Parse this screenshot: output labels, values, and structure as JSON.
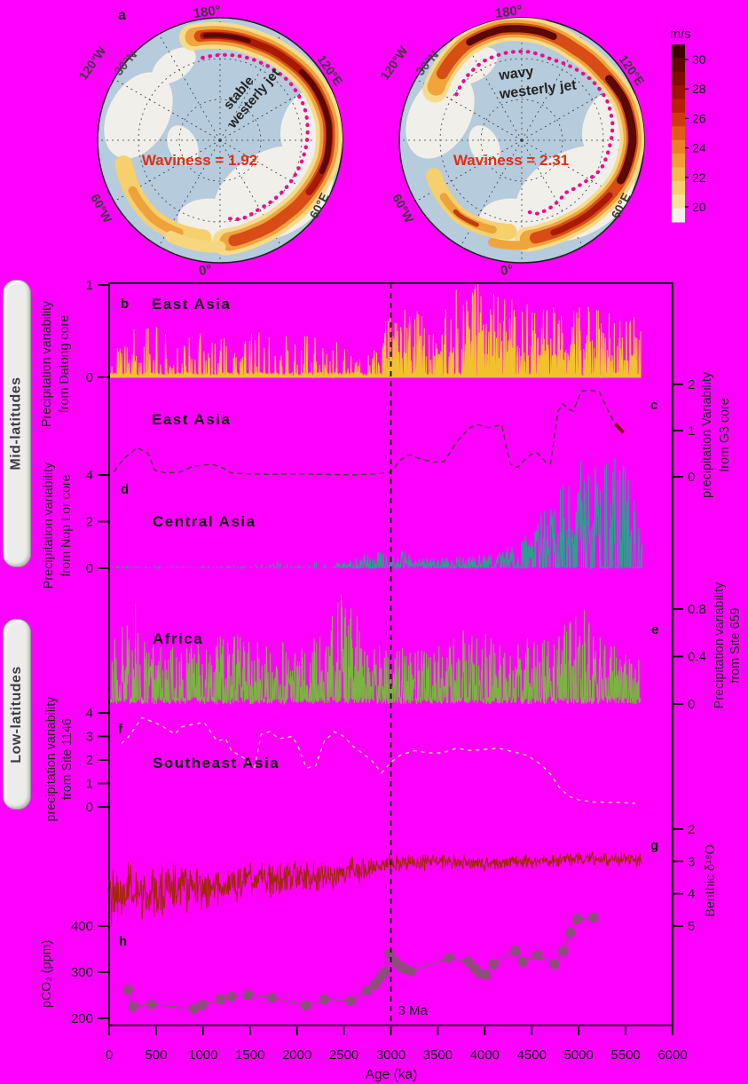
{
  "figure": {
    "background": "#ff00ff",
    "frame_color": "#000000"
  },
  "side_labels": {
    "mid": "Mid-latitudes",
    "low": "Low-latitudes"
  },
  "maps": {
    "panel_letter": "a",
    "contour_color": "#ea0e8c",
    "waviness_color": "#dd2f16",
    "left": {
      "grid_labels": {
        "top": "180°",
        "upper_left": "120°W",
        "lat": "30°N",
        "upper_right": "120°E",
        "lower_right": "60°E",
        "lower_left": "60°W",
        "bottom": "0°"
      },
      "jet_label": [
        "stable",
        "westerly jet"
      ],
      "waviness": "Waviness = 1.92"
    },
    "right": {
      "grid_labels": {
        "top": "180°",
        "upper_left": "120°W",
        "lat": "30°N",
        "upper_right": "120°E",
        "lower_right": "60°E",
        "lower_left": "60°W",
        "bottom": "0°"
      },
      "jet_label": [
        "wavy",
        "westerly jet"
      ],
      "waviness": "Waviness = 2.31"
    },
    "colorbar": {
      "title": "m/s",
      "tick_labels": [
        "30",
        "28",
        "26",
        "24",
        "22",
        "20"
      ],
      "colors": [
        "#3f0402",
        "#5f0903",
        "#7f0d03",
        "#9c1204",
        "#b81f07",
        "#cf3b10",
        "#e05c19",
        "#ec7f28",
        "#f29d3a",
        "#f5b851",
        "#f6cd72",
        "#f8df9b",
        "#f2efe9"
      ]
    }
  },
  "chart_data": {
    "type": "multi-panel time series (line / area / scatter)",
    "x_axis": {
      "label": "Age (ka)",
      "min": 0,
      "max": 6000,
      "tick_step": 500,
      "tick_labels": [
        "0",
        "500",
        "1000",
        "1500",
        "2000",
        "2500",
        "3000",
        "3500",
        "4000",
        "4500",
        "5000",
        "5500",
        "6000"
      ]
    },
    "annotation": {
      "label": "3 Ma",
      "age_ka": 3000
    },
    "panels": [
      {
        "id": "b",
        "letter": "b",
        "region": "East Asia",
        "axis_side": "left",
        "axis_label_lines": [
          "Precipitation variability",
          "from Datong core"
        ],
        "tick_labels": [
          "1",
          "0"
        ],
        "tick_values": [
          1,
          0
        ],
        "value_range": [
          0,
          1.05
        ],
        "color": "#f2c12e",
        "style": "spiky-fill",
        "gen": {
          "seed": 11,
          "step": 4,
          "end": 5660,
          "base": 0.05,
          "split": 2900,
          "prob_young": 0.17,
          "prob_old": 0.4,
          "envelope": [
            [
              0,
              0.32
            ],
            [
              200,
              0.5
            ],
            [
              450,
              0.58
            ],
            [
              700,
              0.48
            ],
            [
              1000,
              0.52
            ],
            [
              1400,
              0.35
            ],
            [
              1600,
              0.5
            ],
            [
              1800,
              0.42
            ],
            [
              2200,
              0.45
            ],
            [
              2600,
              0.3
            ],
            [
              2800,
              0.35
            ],
            [
              3000,
              0.72
            ],
            [
              3300,
              0.8
            ],
            [
              3600,
              0.88
            ],
            [
              3950,
              1.04
            ],
            [
              4200,
              0.86
            ],
            [
              4500,
              0.8
            ],
            [
              4800,
              0.72
            ],
            [
              5100,
              0.76
            ],
            [
              5400,
              0.7
            ],
            [
              5660,
              0.6
            ]
          ]
        }
      },
      {
        "id": "c",
        "letter": "c",
        "region": "East Asia",
        "axis_side": "right",
        "axis_label_lines": [
          "precipitation Variability",
          "from G3 core"
        ],
        "tick_labels": [
          "2",
          "1",
          "0"
        ],
        "tick_values": [
          2,
          1,
          0
        ],
        "color": "#45433a",
        "style": "dashed-line",
        "dash": "6 4",
        "points": [
          [
            50,
            0.1
          ],
          [
            150,
            0.38
          ],
          [
            300,
            0.63
          ],
          [
            420,
            0.5
          ],
          [
            480,
            0.15
          ],
          [
            600,
            0.08
          ],
          [
            750,
            0.1
          ],
          [
            900,
            0.23
          ],
          [
            1100,
            0.27
          ],
          [
            1200,
            0.2
          ],
          [
            1300,
            0.08
          ],
          [
            1500,
            0.06
          ],
          [
            1700,
            0.05
          ],
          [
            2000,
            0.06
          ],
          [
            2300,
            0.05
          ],
          [
            2600,
            0.04
          ],
          [
            2850,
            0.06
          ],
          [
            3000,
            0.1
          ],
          [
            3100,
            0.36
          ],
          [
            3200,
            0.48
          ],
          [
            3320,
            0.38
          ],
          [
            3450,
            0.32
          ],
          [
            3570,
            0.33
          ],
          [
            3700,
            0.75
          ],
          [
            3840,
            1.06
          ],
          [
            3930,
            1.13
          ],
          [
            4030,
            1.06
          ],
          [
            4120,
            1.1
          ],
          [
            4180,
            1.12
          ],
          [
            4270,
            0.28
          ],
          [
            4350,
            0.2
          ],
          [
            4470,
            0.46
          ],
          [
            4560,
            0.52
          ],
          [
            4650,
            0.32
          ],
          [
            4700,
            0.28
          ],
          [
            4780,
            1.42
          ],
          [
            4830,
            1.58
          ],
          [
            4890,
            1.47
          ],
          [
            4940,
            1.42
          ],
          [
            5030,
            1.86
          ],
          [
            5130,
            1.87
          ],
          [
            5220,
            1.84
          ],
          [
            5310,
            1.44
          ],
          [
            5380,
            1.18
          ],
          [
            5400,
            1.12
          ]
        ],
        "end_segment": {
          "color": "#7c150b",
          "points": [
            [
              5400,
              1.12
            ],
            [
              5465,
              0.98
            ]
          ]
        }
      },
      {
        "id": "d",
        "letter": "d",
        "region": "Central Asia",
        "axis_side": "left",
        "axis_label_lines": [
          "Precipitation variability",
          "from Nop Lor core"
        ],
        "tick_labels": [
          "4",
          "2",
          "0"
        ],
        "tick_values": [
          4,
          2,
          0
        ],
        "color": "#2aa18c",
        "style": "spiky-line",
        "gen": {
          "seed": 23,
          "step": 5,
          "end": 5680,
          "base": 0.05,
          "split": 2900,
          "prob_young": 0.3,
          "prob_old": 0.5,
          "gap_until": 2400,
          "gap_prob": 0.35,
          "envelope": [
            [
              0,
              0.06
            ],
            [
              1500,
              0.07
            ],
            [
              1700,
              0.3
            ],
            [
              2100,
              0.22
            ],
            [
              2500,
              0.28
            ],
            [
              2870,
              0.8
            ],
            [
              2980,
              0.5
            ],
            [
              3100,
              0.9
            ],
            [
              3250,
              0.4
            ],
            [
              3500,
              0.45
            ],
            [
              3800,
              0.5
            ],
            [
              4100,
              0.6
            ],
            [
              4300,
              1.1
            ],
            [
              4500,
              2.0
            ],
            [
              4650,
              2.6
            ],
            [
              4800,
              3.6
            ],
            [
              4950,
              4.8
            ],
            [
              5150,
              4.2
            ],
            [
              5300,
              5.0
            ],
            [
              5450,
              4.5
            ],
            [
              5680,
              3.8
            ]
          ]
        }
      },
      {
        "id": "e",
        "letter": "e",
        "region": "Africa",
        "axis_side": "right",
        "axis_label_lines": [
          "Precipitation variability",
          "from Site 659"
        ],
        "tick_labels": [
          "0.8",
          "0.4",
          "0"
        ],
        "tick_values": [
          0.8,
          0.4,
          0
        ],
        "color": "#7cb342",
        "style": "spiky-line",
        "gen": {
          "seed": 37,
          "step": 4,
          "end": 5660,
          "base": 0.06,
          "split": 6000,
          "prob_young": 0.45,
          "prob_old": 0.45,
          "envelope": [
            [
              0,
              0.5
            ],
            [
              250,
              0.85
            ],
            [
              500,
              0.45
            ],
            [
              900,
              0.5
            ],
            [
              1300,
              0.55
            ],
            [
              1700,
              0.5
            ],
            [
              2100,
              0.45
            ],
            [
              2550,
              1.02
            ],
            [
              2700,
              0.5
            ],
            [
              3100,
              0.45
            ],
            [
              3500,
              0.5
            ],
            [
              3900,
              0.62
            ],
            [
              4300,
              0.5
            ],
            [
              4700,
              0.55
            ],
            [
              5050,
              0.8
            ],
            [
              5400,
              0.45
            ],
            [
              5660,
              0.4
            ]
          ]
        }
      },
      {
        "id": "f",
        "letter": "f",
        "region": "Southeast Asia",
        "axis_side": "left",
        "axis_label_lines": [
          "precipitation variability",
          "from Site 1146"
        ],
        "tick_labels": [
          "4",
          "3",
          "2",
          "1",
          "0"
        ],
        "tick_values": [
          4,
          3,
          2,
          1,
          0
        ],
        "color": "#ddd79b",
        "style": "dashed-line",
        "dash": "4 5",
        "points": [
          [
            130,
            2.7
          ],
          [
            210,
            3.0
          ],
          [
            350,
            3.8
          ],
          [
            540,
            3.5
          ],
          [
            700,
            3.1
          ],
          [
            770,
            3.4
          ],
          [
            870,
            3.5
          ],
          [
            1010,
            3.6
          ],
          [
            1080,
            3.2
          ],
          [
            1150,
            2.8
          ],
          [
            1240,
            2.9
          ],
          [
            1300,
            2.4
          ],
          [
            1430,
            2.1
          ],
          [
            1550,
            1.7
          ],
          [
            1620,
            3.1
          ],
          [
            1710,
            3.2
          ],
          [
            1810,
            2.9
          ],
          [
            1950,
            3.0
          ],
          [
            2010,
            2.6
          ],
          [
            2100,
            1.65
          ],
          [
            2200,
            1.75
          ],
          [
            2290,
            2.8
          ],
          [
            2400,
            3.2
          ],
          [
            2500,
            3.0
          ],
          [
            2590,
            2.6
          ],
          [
            2690,
            2.3
          ],
          [
            2790,
            2.0
          ],
          [
            2900,
            1.45
          ],
          [
            3000,
            1.9
          ],
          [
            3100,
            2.2
          ],
          [
            3250,
            2.4
          ],
          [
            3400,
            2.3
          ],
          [
            3550,
            2.3
          ],
          [
            3700,
            2.5
          ],
          [
            3850,
            2.4
          ],
          [
            4000,
            2.45
          ],
          [
            4150,
            2.5
          ],
          [
            4300,
            2.35
          ],
          [
            4450,
            2.2
          ],
          [
            4600,
            1.8
          ],
          [
            4700,
            1.4
          ],
          [
            4800,
            0.8
          ],
          [
            4900,
            0.45
          ],
          [
            5000,
            0.3
          ],
          [
            5150,
            0.22
          ],
          [
            5300,
            0.2
          ],
          [
            5450,
            0.2
          ],
          [
            5600,
            0.15
          ]
        ]
      },
      {
        "id": "g",
        "letter": "g",
        "region": null,
        "axis_side": "right",
        "axis_label_lines": [
          "Benthic δ¹⁸O"
        ],
        "tick_labels": [
          "2",
          "3",
          "4",
          "5"
        ],
        "tick_values": [
          2,
          3,
          4,
          5
        ],
        "inverted_axis": true,
        "color": "#a02800",
        "style": "noise-line",
        "gen": {
          "seed": 51,
          "step": 6,
          "end": 5680,
          "mean": [
            [
              0,
              4.1
            ],
            [
              300,
              4.0
            ],
            [
              600,
              3.95
            ],
            [
              1000,
              3.8
            ],
            [
              1500,
              3.6
            ],
            [
              2000,
              3.5
            ],
            [
              2500,
              3.35
            ],
            [
              2800,
              3.2
            ],
            [
              3000,
              3.05
            ],
            [
              3500,
              3.0
            ],
            [
              4000,
              3.05
            ],
            [
              4500,
              3.0
            ],
            [
              4800,
              2.95
            ],
            [
              5200,
              2.9
            ],
            [
              5680,
              2.95
            ]
          ],
          "amp": [
            [
              0,
              0.8
            ],
            [
              500,
              0.75
            ],
            [
              1000,
              0.6
            ],
            [
              1500,
              0.5
            ],
            [
              2000,
              0.42
            ],
            [
              2500,
              0.38
            ],
            [
              2800,
              0.3
            ],
            [
              3000,
              0.24
            ],
            [
              4000,
              0.2
            ],
            [
              5680,
              0.18
            ]
          ]
        }
      },
      {
        "id": "h",
        "letter": "h",
        "region": null,
        "axis_side": "left",
        "axis_label_lines": [
          "pCO₂ (ppm)"
        ],
        "tick_labels": [
          "400",
          "300",
          "200"
        ],
        "tick_values": [
          400,
          300,
          200
        ],
        "color": "#8d4e7c",
        "style": "marker-line",
        "points": [
          [
            200,
            262
          ],
          [
            255,
            225
          ],
          [
            450,
            230
          ],
          [
            900,
            221
          ],
          [
            990,
            229
          ],
          [
            1180,
            241
          ],
          [
            1300,
            247
          ],
          [
            1480,
            251
          ],
          [
            1730,
            245
          ],
          [
            2090,
            228
          ],
          [
            2290,
            241
          ],
          [
            2570,
            238
          ],
          [
            2745,
            260
          ],
          [
            2830,
            273
          ],
          [
            2880,
            287
          ],
          [
            2930,
            300
          ],
          [
            2985,
            340
          ],
          [
            3045,
            323
          ],
          [
            3095,
            313
          ],
          [
            3140,
            308
          ],
          [
            3210,
            302
          ],
          [
            3615,
            331
          ],
          [
            3820,
            323
          ],
          [
            3890,
            308
          ],
          [
            3945,
            298
          ],
          [
            4010,
            294
          ],
          [
            4090,
            317
          ],
          [
            4325,
            346
          ],
          [
            4400,
            323
          ],
          [
            4560,
            337
          ],
          [
            4740,
            317
          ],
          [
            4835,
            346
          ],
          [
            4910,
            385
          ],
          [
            4985,
            415
          ],
          [
            5155,
            418
          ]
        ]
      }
    ]
  }
}
